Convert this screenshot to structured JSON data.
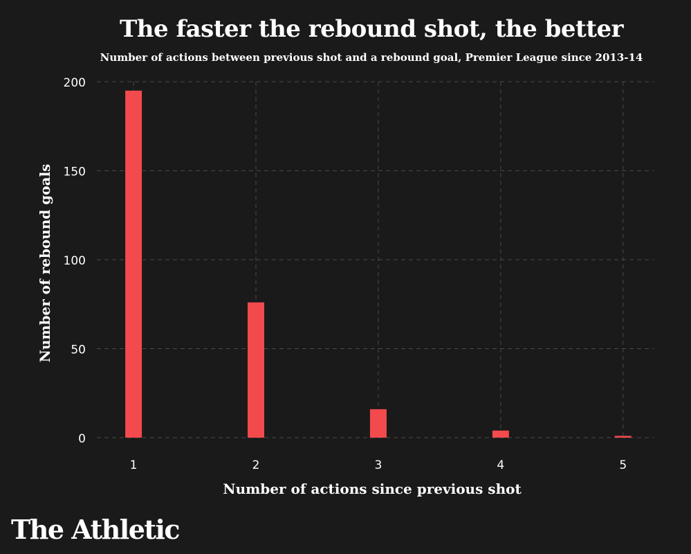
{
  "header": {
    "title": "The faster the rebound shot, the better",
    "subtitle": "Number of actions between previous shot and a rebound goal, Premier League since 2013-14"
  },
  "brand": {
    "logo_text": "The Athletic"
  },
  "chart_data": {
    "type": "bar",
    "categories": [
      "1",
      "2",
      "3",
      "4",
      "5"
    ],
    "x": [
      1,
      2,
      3,
      4,
      5
    ],
    "values": [
      195,
      76,
      16,
      4,
      1
    ],
    "xlabel": "Number of actions since previous shot",
    "ylabel": "Number of rebound goals",
    "ylim": [
      0,
      200
    ],
    "yticks": [
      0,
      50,
      100,
      150,
      200
    ],
    "grid": true,
    "bar_color": "#f24a4d",
    "background_color": "#1a1a1a",
    "grid_color": "#4a4a4a"
  }
}
